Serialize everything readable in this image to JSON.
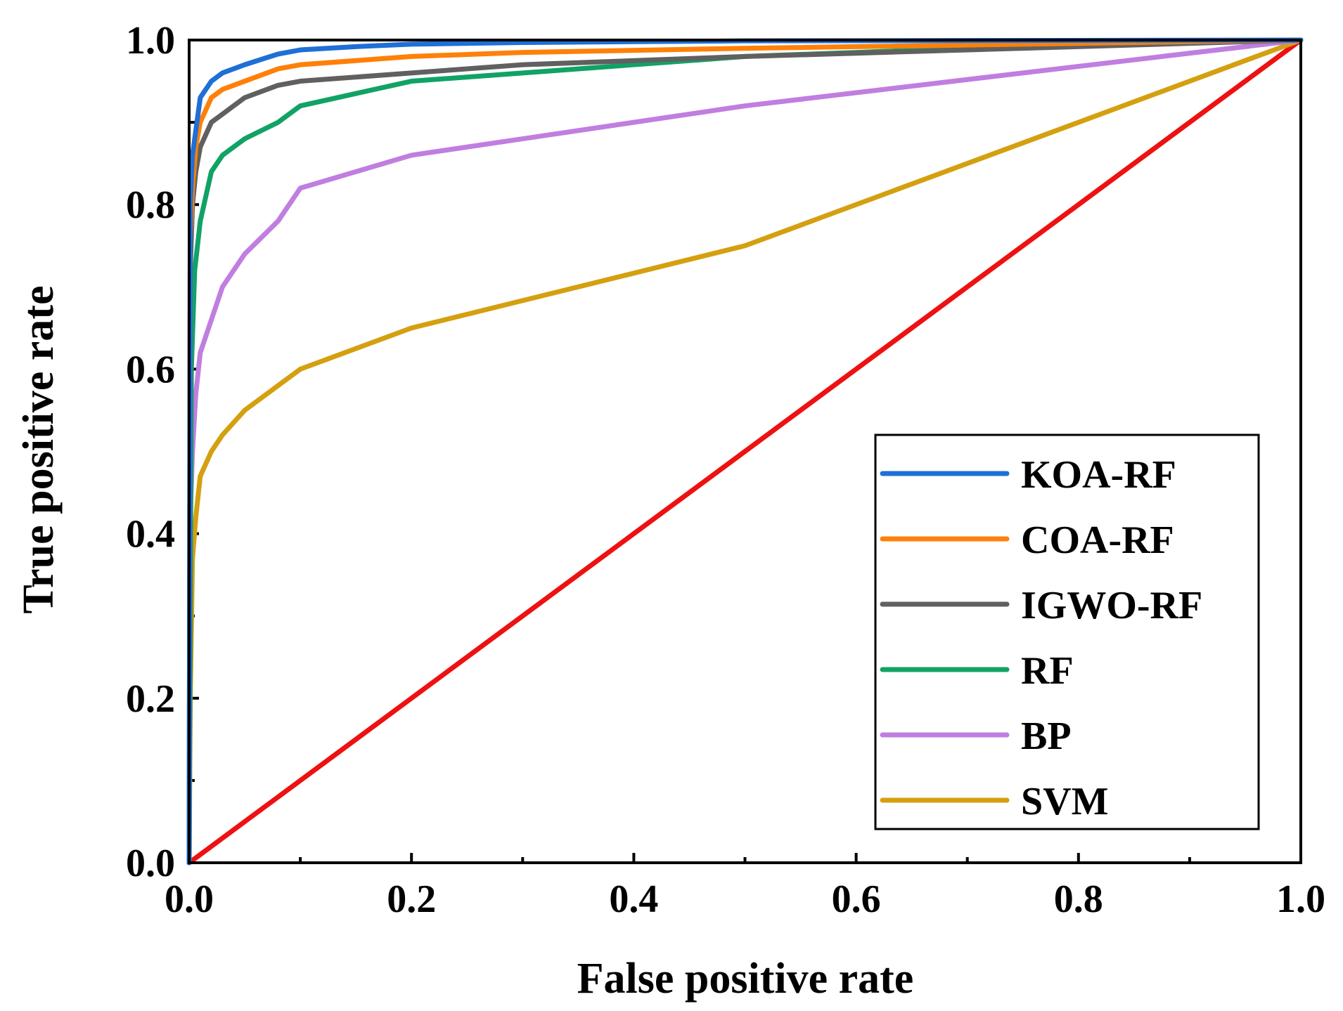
{
  "chart_data": {
    "type": "line",
    "title": "",
    "xlabel": "False positive rate",
    "ylabel": "True positive rate",
    "xlim": [
      0,
      1
    ],
    "ylim": [
      0,
      1
    ],
    "x_ticks": [
      "0.0",
      "0.2",
      "0.4",
      "0.6",
      "0.8",
      "1.0"
    ],
    "y_ticks": [
      "0.0",
      "0.2",
      "0.4",
      "0.6",
      "0.8",
      "1.0"
    ],
    "x_tick_values": [
      0,
      0.2,
      0.4,
      0.6,
      0.8,
      1.0
    ],
    "y_tick_values": [
      0,
      0.2,
      0.4,
      0.6,
      0.8,
      1.0
    ],
    "x_minor_tick_values": [
      0.1,
      0.3,
      0.5,
      0.7,
      0.9
    ],
    "y_minor_tick_values": [
      0.1,
      0.3,
      0.5,
      0.7,
      0.9
    ],
    "grid": false,
    "legend_position": "bottom-right",
    "series": [
      {
        "name": "KOA-RF",
        "color": "#1f6fd6",
        "x": [
          0,
          0.001,
          0.003,
          0.006,
          0.01,
          0.02,
          0.03,
          0.05,
          0.08,
          0.1,
          0.15,
          0.2,
          0.3,
          0.5,
          1.0
        ],
        "y": [
          0,
          0.8,
          0.86,
          0.89,
          0.93,
          0.95,
          0.96,
          0.97,
          0.983,
          0.988,
          0.992,
          0.995,
          0.997,
          0.999,
          1.0
        ]
      },
      {
        "name": "COA-RF",
        "color": "#ff8008",
        "x": [
          0,
          0.001,
          0.003,
          0.006,
          0.01,
          0.02,
          0.03,
          0.05,
          0.08,
          0.1,
          0.2,
          0.3,
          0.5,
          1.0
        ],
        "y": [
          0,
          0.76,
          0.82,
          0.87,
          0.9,
          0.93,
          0.94,
          0.95,
          0.965,
          0.97,
          0.98,
          0.985,
          0.99,
          1.0
        ]
      },
      {
        "name": "IGWO-RF",
        "color": "#606060",
        "x": [
          0,
          0.001,
          0.003,
          0.006,
          0.01,
          0.02,
          0.03,
          0.05,
          0.08,
          0.1,
          0.2,
          0.3,
          0.5,
          1.0
        ],
        "y": [
          0,
          0.72,
          0.8,
          0.84,
          0.87,
          0.9,
          0.91,
          0.93,
          0.945,
          0.95,
          0.96,
          0.97,
          0.98,
          1.0
        ]
      },
      {
        "name": "RF",
        "color": "#11a266",
        "x": [
          0,
          0.002,
          0.005,
          0.01,
          0.02,
          0.03,
          0.05,
          0.08,
          0.1,
          0.2,
          0.3,
          0.5,
          0.7,
          1.0
        ],
        "y": [
          0,
          0.6,
          0.72,
          0.78,
          0.84,
          0.86,
          0.88,
          0.9,
          0.92,
          0.95,
          0.96,
          0.98,
          0.99,
          1.0
        ]
      },
      {
        "name": "BP",
        "color": "#c07ee0",
        "x": [
          0,
          0.001,
          0.003,
          0.006,
          0.01,
          0.02,
          0.03,
          0.05,
          0.08,
          0.1,
          0.2,
          0.5,
          1.0
        ],
        "y": [
          0,
          0.42,
          0.5,
          0.57,
          0.62,
          0.66,
          0.7,
          0.74,
          0.78,
          0.82,
          0.86,
          0.92,
          1.0
        ]
      },
      {
        "name": "SVM",
        "color": "#d4a010",
        "x": [
          0,
          0.001,
          0.003,
          0.006,
          0.01,
          0.02,
          0.03,
          0.05,
          0.08,
          0.1,
          0.2,
          0.5,
          1.0
        ],
        "y": [
          0,
          0.2,
          0.37,
          0.42,
          0.47,
          0.5,
          0.52,
          0.55,
          0.58,
          0.6,
          0.65,
          0.75,
          1.0
        ]
      }
    ],
    "reference_line": {
      "name": "diagonal",
      "color": "#ee1111",
      "x": [
        0,
        1
      ],
      "y": [
        0,
        1
      ]
    }
  }
}
